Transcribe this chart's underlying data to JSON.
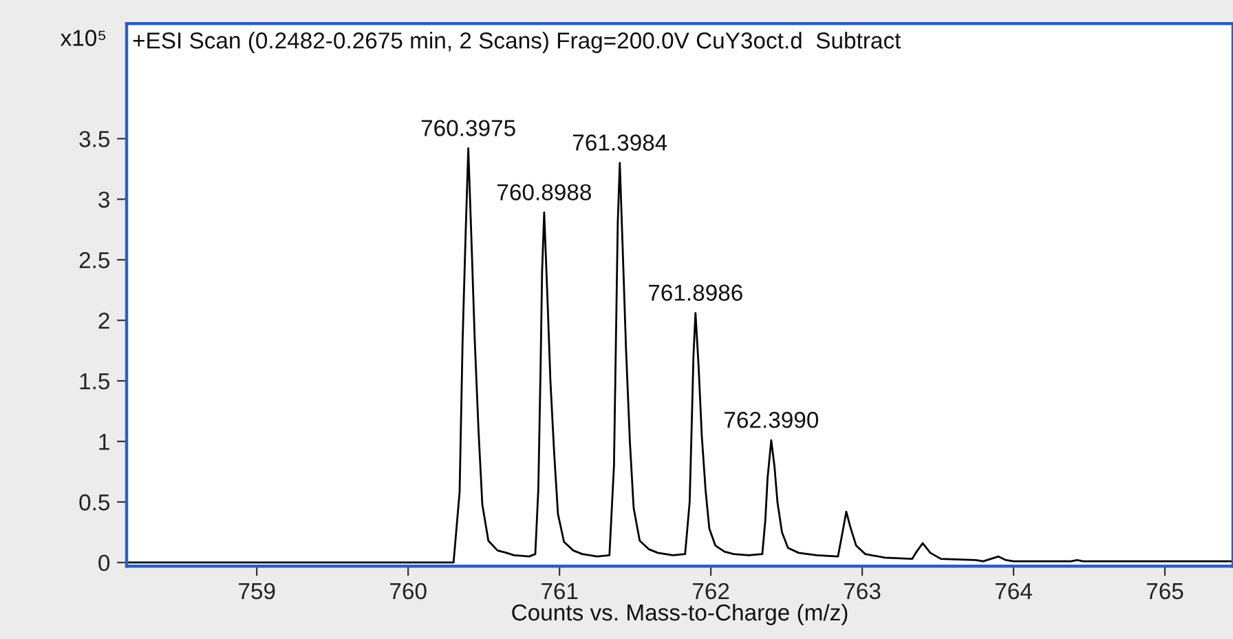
{
  "chart_data": {
    "type": "line",
    "title": "+ESI Scan (0.2482-0.2675 min, 2 Scans) Frag=200.0V CuY3oct.d  Subtract",
    "xlabel": "Counts vs. Mass-to-Charge (m/z)",
    "ylabel": "x10⁵",
    "xlim": [
      758.14,
      765.45
    ],
    "ylim": [
      -0.03,
      4.45
    ],
    "xticks": [
      759,
      760,
      761,
      762,
      763,
      764,
      765
    ],
    "yticks": [
      0,
      0.5,
      1,
      1.5,
      2,
      2.5,
      3,
      3.5
    ],
    "grid": false,
    "legend": false,
    "marker": "none",
    "line_style": "solid",
    "series": [
      {
        "color": "#000000",
        "x": [
          758.14,
          760.3,
          760.34,
          760.36,
          760.38,
          760.3975,
          760.42,
          760.44,
          760.465,
          760.49,
          760.53,
          760.59,
          760.65,
          760.7,
          760.8,
          760.84,
          760.86,
          760.875,
          760.885,
          760.8988,
          760.92,
          760.94,
          760.965,
          760.99,
          761.03,
          761.09,
          761.15,
          761.25,
          761.33,
          761.36,
          761.375,
          761.385,
          761.3984,
          761.42,
          761.44,
          761.465,
          761.49,
          761.53,
          761.59,
          761.65,
          761.75,
          761.83,
          761.86,
          761.875,
          761.885,
          761.8986,
          761.92,
          761.94,
          761.965,
          761.99,
          762.03,
          762.09,
          762.15,
          762.25,
          762.34,
          762.36,
          762.375,
          762.399,
          762.42,
          762.44,
          762.47,
          762.51,
          762.58,
          762.7,
          762.84,
          762.87,
          762.895,
          762.92,
          762.96,
          763.02,
          763.15,
          763.33,
          763.36,
          763.4,
          763.45,
          763.52,
          763.75,
          763.8,
          763.9,
          763.95,
          764.0,
          764.38,
          764.42,
          764.46,
          765.45
        ],
        "values": [
          0,
          0,
          0.58,
          1.84,
          2.72,
          3.42,
          2.6,
          1.84,
          1.09,
          0.48,
          0.18,
          0.1,
          0.08,
          0.06,
          0.05,
          0.07,
          0.6,
          1.6,
          2.4,
          2.89,
          2.2,
          1.5,
          0.9,
          0.4,
          0.17,
          0.1,
          0.07,
          0.05,
          0.06,
          0.8,
          2.0,
          2.8,
          3.3,
          2.5,
          1.75,
          1.0,
          0.45,
          0.18,
          0.11,
          0.08,
          0.06,
          0.07,
          0.5,
          1.2,
          1.7,
          2.06,
          1.6,
          1.05,
          0.6,
          0.28,
          0.14,
          0.09,
          0.07,
          0.06,
          0.07,
          0.35,
          0.7,
          1.01,
          0.8,
          0.5,
          0.25,
          0.12,
          0.08,
          0.06,
          0.05,
          0.25,
          0.42,
          0.3,
          0.14,
          0.07,
          0.04,
          0.03,
          0.09,
          0.16,
          0.08,
          0.03,
          0.02,
          0.01,
          0.05,
          0.02,
          0.01,
          0.01,
          0.02,
          0.01,
          0.01
        ]
      }
    ],
    "annotations": [
      {
        "text": "760.3975",
        "x": 760.3975,
        "y": 3.42
      },
      {
        "text": "760.8988",
        "x": 760.8988,
        "y": 2.89
      },
      {
        "text": "761.3984",
        "x": 761.3984,
        "y": 3.3
      },
      {
        "text": "761.8986",
        "x": 761.8986,
        "y": 2.06
      },
      {
        "text": "762.3990",
        "x": 762.399,
        "y": 1.01
      }
    ]
  }
}
